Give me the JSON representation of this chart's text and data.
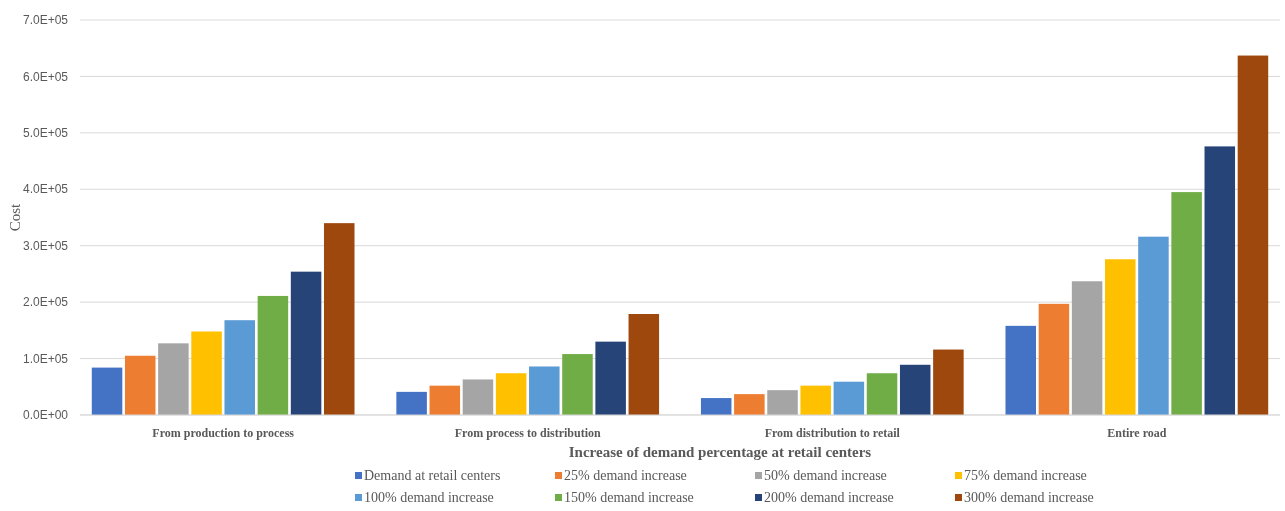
{
  "chart_data": {
    "type": "bar",
    "xlabel": "Increase of demand percentage at retail centers",
    "ylabel": "Cost",
    "categories": [
      "From production to process",
      "From process to distribution",
      "From distribution to retail",
      "Entire road"
    ],
    "series": [
      {
        "name": "Demand at retail centers",
        "color": "#4472c4",
        "values": [
          84000,
          41000,
          30000,
          158000
        ]
      },
      {
        "name": "25% demand increase",
        "color": "#ed7d31",
        "values": [
          105000,
          52000,
          37000,
          197000
        ]
      },
      {
        "name": "50% demand increase",
        "color": "#a5a5a5",
        "values": [
          127000,
          63000,
          44000,
          237000
        ]
      },
      {
        "name": "75% demand increase",
        "color": "#ffc000",
        "values": [
          148000,
          74000,
          52000,
          276000
        ]
      },
      {
        "name": "100% demand increase",
        "color": "#5b9bd5",
        "values": [
          168000,
          86000,
          59000,
          316000
        ]
      },
      {
        "name": "150% demand increase",
        "color": "#70ad47",
        "values": [
          211000,
          108000,
          74000,
          395000
        ]
      },
      {
        "name": "200% demand increase",
        "color": "#264478",
        "values": [
          254000,
          130000,
          89000,
          476000
        ]
      },
      {
        "name": "300% demand increase",
        "color": "#9e480e",
        "values": [
          340000,
          179000,
          116000,
          637000
        ]
      }
    ],
    "ylim": [
      0,
      700000
    ],
    "yticks": [
      {
        "value": 0,
        "label": "0.0E+00"
      },
      {
        "value": 100000,
        "label": "1.0E+05"
      },
      {
        "value": 200000,
        "label": "2.0E+05"
      },
      {
        "value": 300000,
        "label": "3.0E+05"
      },
      {
        "value": 400000,
        "label": "4.0E+05"
      },
      {
        "value": 500000,
        "label": "5.0E+05"
      },
      {
        "value": 600000,
        "label": "6.0E+05"
      },
      {
        "value": 700000,
        "label": "7.0E+05"
      }
    ],
    "grid": "y",
    "legend": "bottom"
  }
}
